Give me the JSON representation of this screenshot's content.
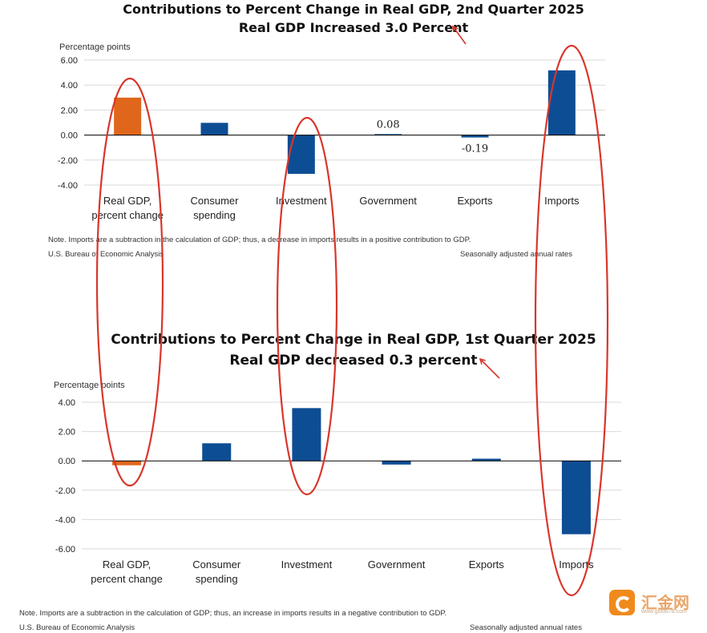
{
  "chart_data": [
    {
      "type": "bar",
      "title": "Contributions to Percent Change in Real GDP, 2nd Quarter 2025",
      "subtitle": "Real GDP Increased 3.0 Percent",
      "ylabel": "Percentage points",
      "categories": [
        "Real GDP,\npercent change",
        "Consumer\nspending",
        "Investment",
        "Government",
        "Exports",
        "Imports"
      ],
      "values": [
        3.0,
        0.98,
        -3.1,
        0.08,
        -0.19,
        5.18
      ],
      "data_labels": [
        null,
        null,
        null,
        "0.08",
        "-0.19",
        null
      ],
      "ylim": [
        -4.0,
        6.0
      ],
      "yticks": [
        6.0,
        4.0,
        2.0,
        0.0,
        -2.0,
        -4.0
      ],
      "ytick_labels": [
        "6.00",
        "4.00",
        "2.00",
        "0.00",
        "-2.00",
        "-4.00"
      ],
      "colors": [
        "#e0661c",
        "#0d4d94",
        "#0d4d94",
        "#0d4d94",
        "#0d4d94",
        "#0d4d94"
      ],
      "note": "Note. Imports are a subtraction in the calculation of GDP; thus, a decrease in imports results in a positive contribution to GDP.",
      "source": "U.S. Bureau of Economic Analysis",
      "rates": "Seasonally adjusted annual rates"
    },
    {
      "type": "bar",
      "title": "Contributions to Percent Change in Real GDP, 1st Quarter 2025",
      "subtitle": "Real GDP decreased 0.3 percent",
      "ylabel": "Percentage points",
      "categories": [
        "Real GDP,\npercent change",
        "Consumer\nspending",
        "Investment",
        "Government",
        "Exports",
        "Imports"
      ],
      "values": [
        -0.3,
        1.2,
        3.6,
        -0.25,
        0.15,
        -5.0
      ],
      "data_labels": [
        null,
        null,
        null,
        null,
        null,
        null
      ],
      "ylim": [
        -6.0,
        4.0
      ],
      "yticks": [
        4.0,
        2.0,
        0.0,
        -2.0,
        -4.0,
        -6.0
      ],
      "ytick_labels": [
        "4.00",
        "2.00",
        "0.00",
        "-2.00",
        "-4.00",
        "-6.00"
      ],
      "colors": [
        "#e0661c",
        "#0d4d94",
        "#0d4d94",
        "#0d4d94",
        "#0d4d94",
        "#0d4d94"
      ],
      "note": "Note. Imports are a subtraction in the calculation of GDP; thus, an increase in imports results in a negative contribution to GDP.",
      "source": "U.S. Bureau of Economic Analysis",
      "rates": "Seasonally adjusted annual rates"
    }
  ],
  "colors": {
    "annotation_red": "#d9362b",
    "gridline": "#d9d9d9",
    "axis": "#000000"
  },
  "watermark": {
    "text": "汇金网",
    "url": "www.gold678.com"
  }
}
